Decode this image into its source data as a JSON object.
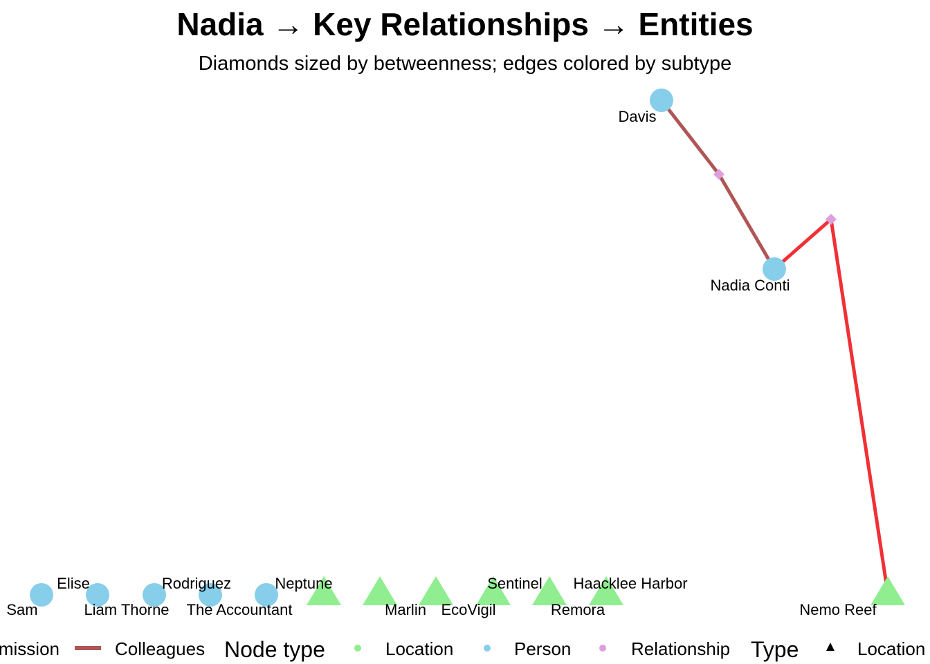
{
  "title": "Nadia → Key Relationships → Entities",
  "subtitle": "Diamonds sized by betweenness; edges colored by subtype",
  "colors": {
    "person": "#87CEEB",
    "location": "#90EE90",
    "relationship": "#DDA0DD",
    "colleagues_edge": "#B05555",
    "permission_edge": "#F03035"
  },
  "nodes": [
    {
      "id": "davis",
      "label": "Davis",
      "type": "Person"
    },
    {
      "id": "rel1",
      "label": "",
      "type": "Relationship"
    },
    {
      "id": "nadia",
      "label": "Nadia Conti",
      "type": "Person"
    },
    {
      "id": "rel2",
      "label": "",
      "type": "Relationship"
    },
    {
      "id": "nemo",
      "label": "Nemo Reef",
      "type": "Location"
    },
    {
      "id": "sam",
      "label": "Sam",
      "type": "Person"
    },
    {
      "id": "elise",
      "label": "Elise",
      "type": "Person"
    },
    {
      "id": "liam",
      "label": "Liam Thorne",
      "type": "Person"
    },
    {
      "id": "rodriguez",
      "label": "Rodriguez",
      "type": "Person"
    },
    {
      "id": "accountant",
      "label": "The Accountant",
      "type": "Person"
    },
    {
      "id": "neptune",
      "label": "Neptune",
      "type": "Location"
    },
    {
      "id": "marlin",
      "label": "Marlin",
      "type": "Location"
    },
    {
      "id": "ecovigil",
      "label": "EcoVigil",
      "type": "Location"
    },
    {
      "id": "sentinel",
      "label": "Sentinel",
      "type": "Location"
    },
    {
      "id": "remora",
      "label": "Remora",
      "type": "Location"
    },
    {
      "id": "haacklee",
      "label": "Haacklee Harbor",
      "type": "Location"
    }
  ],
  "edges": [
    {
      "from": "davis",
      "to": "rel1",
      "subtype": "Colleagues"
    },
    {
      "from": "rel1",
      "to": "nadia",
      "subtype": "Colleagues"
    },
    {
      "from": "nadia",
      "to": "rel2",
      "subtype": "Permission"
    },
    {
      "from": "rel2",
      "to": "nemo",
      "subtype": "Permission"
    }
  ],
  "legend": {
    "edge_items": [
      "mission",
      "Colleagues"
    ],
    "node_type_title": "Node type",
    "node_type_items": [
      "Location",
      "Person",
      "Relationship"
    ],
    "type_title": "Type",
    "type_items": [
      "Location"
    ]
  }
}
